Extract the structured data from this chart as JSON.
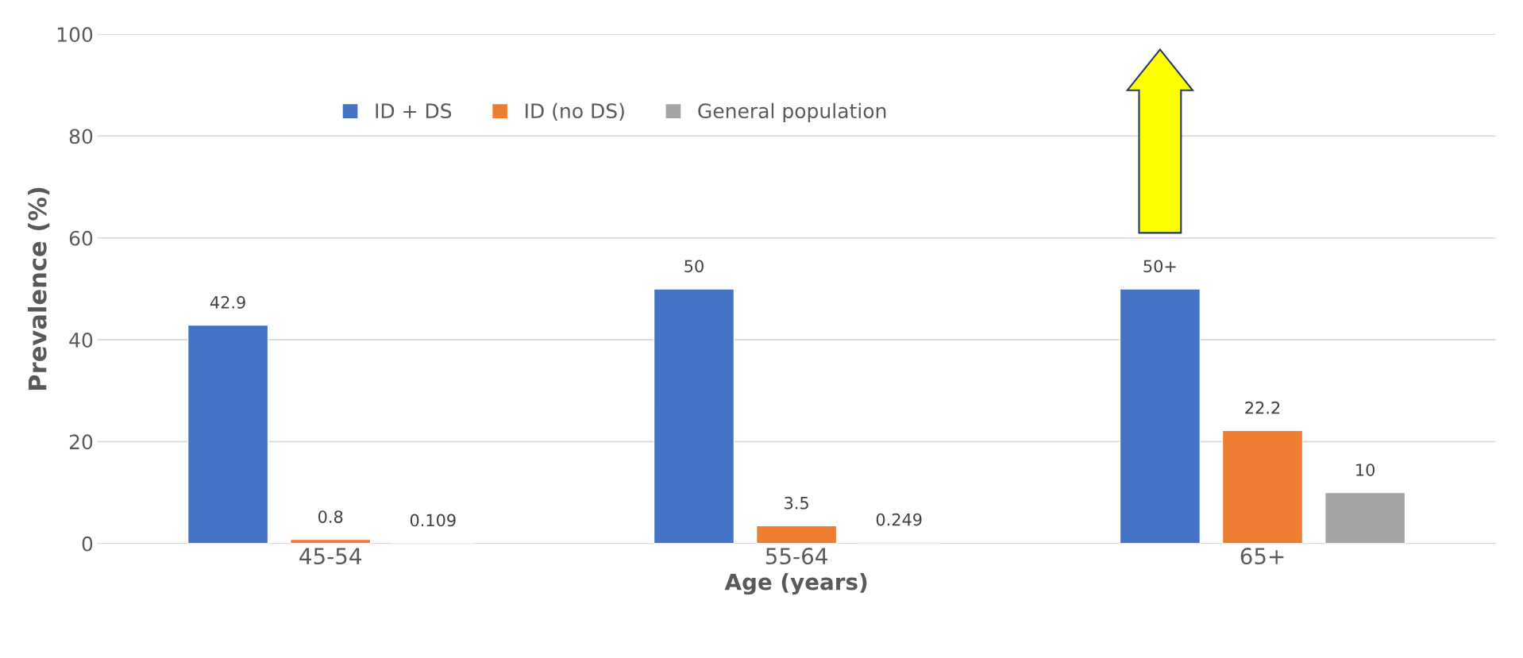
{
  "chart_data": {
    "type": "bar",
    "xlabel": "Age (years)",
    "ylabel": "Prevalence (%)",
    "categories": [
      "45-54",
      "55-64",
      "65+"
    ],
    "series": [
      {
        "name": "ID + DS",
        "color": "#4472c4",
        "values": [
          42.9,
          50,
          50
        ],
        "value_labels": [
          "42.9",
          "50",
          "50+"
        ]
      },
      {
        "name": "ID (no DS)",
        "color": "#ed7d31",
        "values": [
          0.8,
          3.5,
          22.2
        ],
        "value_labels": [
          "0.8",
          "3.5",
          "22.2"
        ]
      },
      {
        "name": "General population",
        "color": "#a5a5a5",
        "values": [
          0.109,
          0.249,
          10
        ],
        "value_labels": [
          "0.109",
          "0.249",
          "10"
        ]
      }
    ],
    "ylim": [
      0,
      100
    ],
    "yticks": [
      0,
      20,
      40,
      60,
      80,
      100
    ],
    "grid": "y",
    "legend": "top"
  }
}
